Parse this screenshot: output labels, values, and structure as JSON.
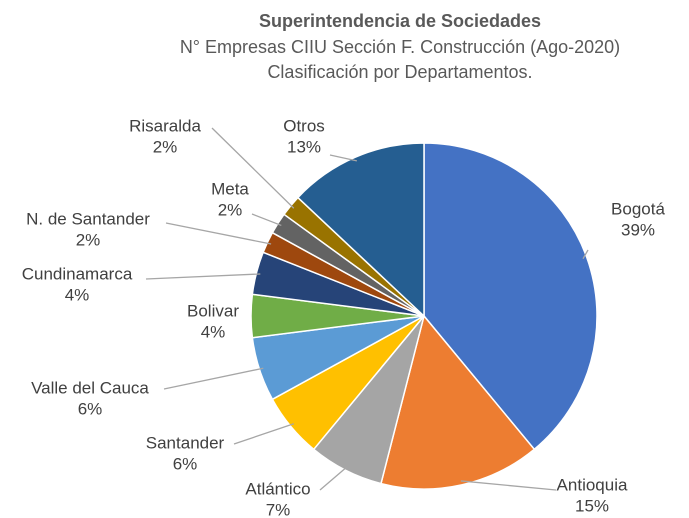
{
  "chart_data": {
    "type": "pie",
    "title": "Superintendencia de Sociedades",
    "subtitle": [
      "N° Empresas CIIU Sección F. Construcción (Ago-2020)",
      "Clasificación por Departamentos."
    ],
    "categories": [
      "Bogotá",
      "Antioquia",
      "Atlántico",
      "Santander",
      "Valle del Cauca",
      "Bolivar",
      "Cundinamarca",
      "N. de Santander",
      "Meta",
      "Risaralda",
      "Otros"
    ],
    "values": [
      39,
      15,
      7,
      6,
      6,
      4,
      4,
      2,
      2,
      2,
      13
    ],
    "value_labels": [
      "39%",
      "15%",
      "7%",
      "6%",
      "6%",
      "4%",
      "4%",
      "2%",
      "2%",
      "2%",
      "13%"
    ],
    "colors": [
      "#4472c4",
      "#ed7d31",
      "#a5a5a5",
      "#ffc000",
      "#5b9bd5",
      "#70ad47",
      "#264478",
      "#9e480e",
      "#636363",
      "#997300",
      "#255e91"
    ]
  }
}
